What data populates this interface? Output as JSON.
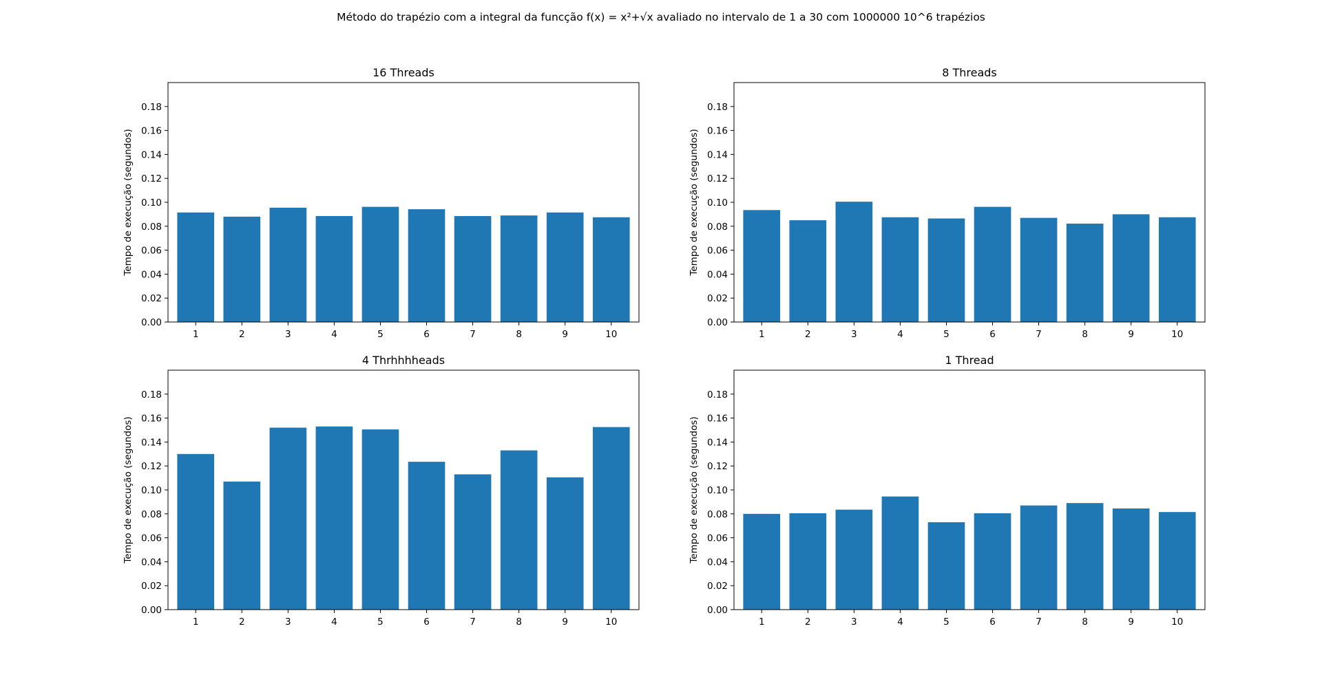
{
  "title": "Método do trapézio com a integral da funcção f(x) = x²+√x avaliado no intervalo de 1 a 30 com 1000000 10^6 trapézios",
  "colors": {
    "bar": "#1f77b4",
    "axis": "#000000"
  },
  "chart_data": [
    {
      "type": "bar",
      "title": "16 Threads",
      "xlabel": "",
      "ylabel": "Tempo de execução (segundos)",
      "categories": [
        "1",
        "2",
        "3",
        "4",
        "5",
        "6",
        "7",
        "8",
        "9",
        "10"
      ],
      "values": [
        0.0915,
        0.088,
        0.0955,
        0.0885,
        0.0962,
        0.0942,
        0.0885,
        0.089,
        0.0915,
        0.0875
      ],
      "ylim": [
        0,
        0.2
      ],
      "yticks": [
        "0.00",
        "0.02",
        "0.04",
        "0.06",
        "0.08",
        "0.10",
        "0.12",
        "0.14",
        "0.16",
        "0.18"
      ],
      "grid": false
    },
    {
      "type": "bar",
      "title": "8 Threads",
      "xlabel": "",
      "ylabel": "Tempo de execução (segundos)",
      "categories": [
        "1",
        "2",
        "3",
        "4",
        "5",
        "6",
        "7",
        "8",
        "9",
        "10"
      ],
      "values": [
        0.0935,
        0.085,
        0.1005,
        0.0875,
        0.0865,
        0.0962,
        0.087,
        0.0822,
        0.09,
        0.0875
      ],
      "ylim": [
        0,
        0.2
      ],
      "yticks": [
        "0.00",
        "0.02",
        "0.04",
        "0.06",
        "0.08",
        "0.10",
        "0.12",
        "0.14",
        "0.16",
        "0.18"
      ],
      "grid": false
    },
    {
      "type": "bar",
      "title": "4 Thrhhhheads",
      "xlabel": "",
      "ylabel": "Tempo de execução (segundos)",
      "categories": [
        "1",
        "2",
        "3",
        "4",
        "5",
        "6",
        "7",
        "8",
        "9",
        "10"
      ],
      "values": [
        0.13,
        0.107,
        0.152,
        0.153,
        0.1505,
        0.1235,
        0.113,
        0.133,
        0.1105,
        0.1525
      ],
      "ylim": [
        0,
        0.2
      ],
      "yticks": [
        "0.00",
        "0.02",
        "0.04",
        "0.06",
        "0.08",
        "0.10",
        "0.12",
        "0.14",
        "0.16",
        "0.18"
      ],
      "grid": false
    },
    {
      "type": "bar",
      "title": "1 Thread",
      "xlabel": "",
      "ylabel": "Tempo de execução (segundos)",
      "categories": [
        "1",
        "2",
        "3",
        "4",
        "5",
        "6",
        "7",
        "8",
        "9",
        "10"
      ],
      "values": [
        0.08,
        0.0805,
        0.0835,
        0.0945,
        0.073,
        0.0805,
        0.087,
        0.089,
        0.0845,
        0.0815
      ],
      "ylim": [
        0,
        0.2
      ],
      "yticks": [
        "0.00",
        "0.02",
        "0.04",
        "0.06",
        "0.08",
        "0.10",
        "0.12",
        "0.14",
        "0.16",
        "0.18"
      ],
      "grid": false
    }
  ]
}
